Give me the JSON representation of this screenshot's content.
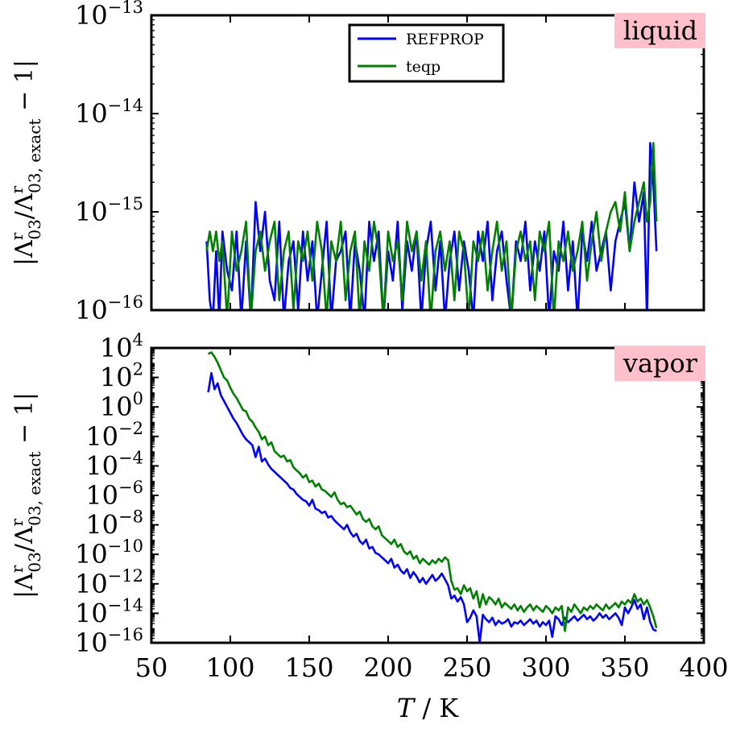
{
  "chart_data": [
    {
      "type": "line",
      "panel": "top",
      "annotation": "liquid",
      "annotation_bg": "#ffc0cb",
      "ylabel": "|Λ^r_03/Λ^r_03,exact − 1|",
      "ylabel_parts": {
        "open": "|Λ",
        "sup1": "r",
        "sub1": "03",
        "mid": "/Λ",
        "sup2": "r",
        "sub2": "03, exact",
        "close": " − 1|"
      },
      "yscale": "log",
      "ylim_exp": [
        -16,
        -13
      ],
      "yticks_exp": [
        -16,
        -15,
        -14,
        -13
      ],
      "yticks_base": "10",
      "yticks_sup": [
        "−16",
        "−15",
        "−14",
        "−13"
      ],
      "xlim": [
        50,
        400
      ],
      "legend": {
        "placement": "top-center",
        "entries": [
          "REFPROP",
          "teqp"
        ]
      },
      "series": [
        {
          "name": "REFPROP",
          "color": "#0000ff",
          "x": [
            85,
            87,
            89,
            91,
            93,
            95,
            98,
            101,
            104,
            107,
            110,
            113,
            116,
            119,
            122,
            125,
            128,
            131,
            134,
            137,
            140,
            143,
            146,
            149,
            152,
            155,
            158,
            161,
            164,
            167,
            170,
            173,
            176,
            179,
            182,
            185,
            188,
            191,
            194,
            197,
            200,
            203,
            206,
            209,
            212,
            215,
            218,
            221,
            224,
            227,
            230,
            233,
            236,
            239,
            242,
            245,
            248,
            251,
            254,
            257,
            260,
            263,
            266,
            269,
            272,
            275,
            278,
            281,
            284,
            287,
            290,
            293,
            296,
            299,
            302,
            305,
            308,
            311,
            314,
            317,
            320,
            323,
            326,
            329,
            332,
            335,
            338,
            341,
            344,
            347,
            350,
            353,
            356,
            359,
            362,
            364,
            366,
            368,
            370
          ],
          "y_exp": [
            -15.3,
            -15.9,
            -16.1,
            -15.4,
            -16.1,
            -15.2,
            -15.6,
            -15.8,
            -15.2,
            -16.1,
            -15.3,
            -16.1,
            -14.9,
            -15.4,
            -15.0,
            -15.7,
            -15.9,
            -15.1,
            -16.1,
            -15.5,
            -15.3,
            -16.0,
            -15.2,
            -15.7,
            -15.3,
            -16.1,
            -15.6,
            -15.1,
            -16.1,
            -15.5,
            -15.4,
            -15.2,
            -16.1,
            -15.3,
            -15.6,
            -16.1,
            -15.1,
            -15.5,
            -15.2,
            -16.1,
            -15.4,
            -15.7,
            -15.1,
            -16.0,
            -15.3,
            -15.6,
            -15.2,
            -16.1,
            -15.4,
            -15.1,
            -15.8,
            -15.3,
            -16.1,
            -15.5,
            -15.2,
            -15.8,
            -15.3,
            -15.6,
            -16.1,
            -15.2,
            -15.5,
            -15.1,
            -15.9,
            -15.4,
            -15.2,
            -15.7,
            -16.1,
            -15.3,
            -15.5,
            -15.1,
            -15.8,
            -15.3,
            -15.6,
            -15.2,
            -16.1,
            -15.4,
            -15.6,
            -15.1,
            -15.8,
            -15.3,
            -16.1,
            -15.2,
            -15.5,
            -15.1,
            -15.6,
            -15.4,
            -15.2,
            -15.8,
            -15.3,
            -15.1,
            -14.9,
            -15.4,
            -14.7,
            -15.1,
            -14.8,
            -16.1,
            -14.3,
            -14.7,
            -15.4
          ]
        },
        {
          "name": "teqp",
          "color": "#008000",
          "x": [
            85,
            87,
            89,
            91,
            93,
            95,
            98,
            101,
            104,
            107,
            110,
            113,
            116,
            119,
            122,
            125,
            128,
            131,
            134,
            137,
            140,
            143,
            146,
            149,
            152,
            155,
            158,
            161,
            164,
            167,
            170,
            173,
            176,
            179,
            182,
            185,
            188,
            191,
            194,
            197,
            200,
            203,
            206,
            209,
            212,
            215,
            218,
            221,
            224,
            227,
            230,
            233,
            236,
            239,
            242,
            245,
            248,
            251,
            254,
            257,
            260,
            263,
            266,
            269,
            272,
            275,
            278,
            281,
            284,
            287,
            290,
            293,
            296,
            299,
            302,
            305,
            308,
            311,
            314,
            317,
            320,
            323,
            326,
            329,
            332,
            335,
            338,
            341,
            344,
            347,
            350,
            353,
            356,
            359,
            362,
            364,
            366,
            368,
            370
          ],
          "y_exp": [
            -15.4,
            -15.2,
            -15.4,
            -15.2,
            -15.5,
            -15.3,
            -16.1,
            -15.2,
            -15.6,
            -15.4,
            -15.1,
            -16.1,
            -15.4,
            -15.2,
            -15.6,
            -15.3,
            -15.1,
            -15.9,
            -15.4,
            -15.2,
            -16.0,
            -15.3,
            -15.5,
            -15.2,
            -15.7,
            -15.1,
            -15.4,
            -16.1,
            -15.3,
            -15.5,
            -15.1,
            -15.9,
            -15.4,
            -15.2,
            -16.1,
            -15.3,
            -15.6,
            -15.1,
            -15.4,
            -16.1,
            -15.2,
            -15.5,
            -15.3,
            -15.9,
            -15.1,
            -15.4,
            -15.2,
            -15.7,
            -15.3,
            -16.1,
            -15.4,
            -15.2,
            -15.6,
            -15.3,
            -15.9,
            -15.2,
            -15.4,
            -16.1,
            -15.3,
            -15.5,
            -15.2,
            -15.8,
            -15.4,
            -15.1,
            -15.6,
            -15.3,
            -16.1,
            -15.4,
            -15.2,
            -15.5,
            -15.3,
            -15.9,
            -15.2,
            -15.4,
            -15.1,
            -16.1,
            -15.3,
            -15.5,
            -15.2,
            -15.6,
            -15.4,
            -15.1,
            -15.7,
            -15.3,
            -15.0,
            -15.5,
            -15.2,
            -15.0,
            -14.9,
            -15.2,
            -14.8,
            -15.4,
            -15.1,
            -14.9,
            -14.7,
            -15.1,
            -14.9,
            -14.3,
            -15.1
          ]
        }
      ]
    },
    {
      "type": "line",
      "panel": "bottom",
      "annotation": "vapor",
      "annotation_bg": "#ffc0cb",
      "ylabel": "|Λ^r_03/Λ^r_03,exact − 1|",
      "ylabel_parts": {
        "open": "|Λ",
        "sup1": "r",
        "sub1": "03",
        "mid": "/Λ",
        "sup2": "r",
        "sub2": "03, exact",
        "close": " − 1|"
      },
      "xlabel": "T / K",
      "xlabel_parts": {
        "var": "T",
        "unit": " / K"
      },
      "yscale": "log",
      "ylim_exp": [
        -16,
        4
      ],
      "yticks_exp": [
        -16,
        -14,
        -12,
        -10,
        -8,
        -6,
        -4,
        -2,
        0,
        2,
        4
      ],
      "yticks_base": "10",
      "yticks_sup": [
        "−16",
        "−14",
        "−12",
        "−10",
        "−8",
        "−6",
        "−4",
        "−2",
        "0",
        "2",
        "4"
      ],
      "xlim": [
        50,
        400
      ],
      "xticks": [
        "50",
        "100",
        "150",
        "200",
        "250",
        "300",
        "350",
        "400"
      ],
      "xtick_values": [
        50,
        100,
        150,
        200,
        250,
        300,
        350,
        400
      ],
      "series": [
        {
          "name": "REFPROP",
          "color": "#0000ff",
          "x": [
            86,
            88,
            90,
            92,
            94,
            96,
            98,
            100,
            102,
            104,
            106,
            108,
            110,
            112,
            114,
            116,
            118,
            120,
            122,
            124,
            126,
            128,
            130,
            132,
            134,
            136,
            138,
            140,
            142,
            144,
            146,
            148,
            150,
            152,
            154,
            156,
            158,
            160,
            162,
            164,
            166,
            168,
            170,
            172,
            174,
            176,
            178,
            180,
            182,
            184,
            186,
            188,
            190,
            192,
            194,
            196,
            198,
            200,
            202,
            204,
            206,
            208,
            210,
            212,
            214,
            216,
            218,
            220,
            222,
            224,
            226,
            228,
            230,
            232,
            234,
            236,
            238,
            240,
            242,
            244,
            246,
            248,
            250,
            252,
            254,
            256,
            258,
            260,
            262,
            264,
            266,
            268,
            270,
            272,
            274,
            276,
            278,
            280,
            282,
            284,
            286,
            288,
            290,
            292,
            294,
            296,
            298,
            300,
            302,
            304,
            306,
            308,
            310,
            312,
            314,
            316,
            318,
            320,
            322,
            324,
            326,
            328,
            330,
            332,
            334,
            336,
            338,
            340,
            342,
            344,
            346,
            348,
            350,
            352,
            354,
            356,
            358,
            360,
            362,
            364,
            366,
            368,
            370
          ],
          "y_exp": [
            1.0,
            2.3,
            1.2,
            1.6,
            0.8,
            0.4,
            0.0,
            -0.4,
            -0.8,
            -1.1,
            -1.5,
            -1.9,
            -2.2,
            -2.4,
            -2.6,
            -3.4,
            -2.7,
            -3.7,
            -3.5,
            -3.9,
            -4.2,
            -4.4,
            -4.6,
            -4.8,
            -5.0,
            -5.2,
            -5.5,
            -5.6,
            -5.9,
            -6.1,
            -6.3,
            -6.4,
            -6.7,
            -6.3,
            -6.9,
            -7.0,
            -7.2,
            -7.1,
            -7.5,
            -7.4,
            -7.7,
            -7.9,
            -8.1,
            -8.3,
            -8.0,
            -8.5,
            -8.8,
            -8.6,
            -9.1,
            -9.3,
            -9.0,
            -9.6,
            -9.5,
            -9.9,
            -10.0,
            -10.2,
            -10.4,
            -10.6,
            -10.3,
            -10.9,
            -10.7,
            -11.1,
            -11.3,
            -11.0,
            -11.6,
            -11.2,
            -11.5,
            -11.9,
            -11.6,
            -12.0,
            -11.7,
            -11.4,
            -11.8,
            -11.6,
            -11.3,
            -11.7,
            -12.1,
            -13.0,
            -12.8,
            -13.2,
            -12.9,
            -13.4,
            -14.6,
            -14.3,
            -13.8,
            -14.2,
            -16.0,
            -14.1,
            -14.4,
            -14.6,
            -14.3,
            -14.8,
            -14.5,
            -14.7,
            -14.6,
            -14.4,
            -14.9,
            -14.6,
            -14.7,
            -14.5,
            -14.8,
            -14.6,
            -14.4,
            -14.7,
            -14.5,
            -14.9,
            -14.6,
            -14.8,
            -14.5,
            -15.6,
            -14.2,
            -14.4,
            -14.8,
            -14.3,
            -14.6,
            -14.4,
            -14.2,
            -14.5,
            -14.3,
            -14.1,
            -14.4,
            -14.2,
            -14.5,
            -14.3,
            -14.0,
            -14.3,
            -14.1,
            -14.4,
            -14.2,
            -14.0,
            -14.3,
            -14.8,
            -13.6,
            -14.0,
            -13.6,
            -13.1,
            -13.7,
            -13.4,
            -14.4,
            -13.6,
            -14.6,
            -15.1,
            -15.2
          ]
        },
        {
          "name": "teqp",
          "color": "#008000",
          "x": [
            86,
            88,
            90,
            92,
            94,
            96,
            98,
            100,
            102,
            104,
            106,
            108,
            110,
            112,
            114,
            116,
            118,
            120,
            122,
            124,
            126,
            128,
            130,
            132,
            134,
            136,
            138,
            140,
            142,
            144,
            146,
            148,
            150,
            152,
            154,
            156,
            158,
            160,
            162,
            164,
            166,
            168,
            170,
            172,
            174,
            176,
            178,
            180,
            182,
            184,
            186,
            188,
            190,
            192,
            194,
            196,
            198,
            200,
            202,
            204,
            206,
            208,
            210,
            212,
            214,
            216,
            218,
            220,
            222,
            224,
            226,
            228,
            230,
            232,
            234,
            236,
            238,
            240,
            242,
            244,
            246,
            248,
            250,
            252,
            254,
            256,
            258,
            260,
            262,
            264,
            266,
            268,
            270,
            272,
            274,
            276,
            278,
            280,
            282,
            284,
            286,
            288,
            290,
            292,
            294,
            296,
            298,
            300,
            302,
            304,
            306,
            308,
            310,
            312,
            314,
            316,
            318,
            320,
            322,
            324,
            326,
            328,
            330,
            332,
            334,
            336,
            338,
            340,
            342,
            344,
            346,
            348,
            350,
            352,
            354,
            356,
            358,
            360,
            362,
            364,
            366,
            368,
            370
          ],
          "y_exp": [
            3.6,
            3.7,
            3.4,
            3.0,
            2.5,
            2.0,
            1.8,
            1.3,
            0.9,
            0.6,
            0.2,
            -0.2,
            -0.3,
            -0.8,
            -1.0,
            -1.4,
            -1.7,
            -2.2,
            -2.0,
            -2.6,
            -2.4,
            -3.0,
            -3.2,
            -3.4,
            -3.3,
            -3.7,
            -3.6,
            -4.1,
            -4.3,
            -4.5,
            -4.8,
            -4.6,
            -5.1,
            -5.0,
            -5.4,
            -5.2,
            -5.6,
            -5.7,
            -5.9,
            -6.1,
            -5.8,
            -6.3,
            -6.6,
            -6.5,
            -6.8,
            -6.7,
            -7.0,
            -7.3,
            -7.1,
            -7.6,
            -7.8,
            -7.6,
            -8.1,
            -8.3,
            -8.1,
            -8.7,
            -8.9,
            -9.1,
            -9.3,
            -9.0,
            -9.5,
            -9.3,
            -9.8,
            -10.0,
            -9.8,
            -10.3,
            -10.1,
            -10.6,
            -10.3,
            -10.5,
            -10.7,
            -10.4,
            -10.6,
            -10.3,
            -10.5,
            -10.2,
            -10.4,
            -11.8,
            -12.4,
            -12.3,
            -12.7,
            -12.1,
            -12.5,
            -12.3,
            -13.0,
            -12.5,
            -13.6,
            -12.7,
            -13.4,
            -12.9,
            -13.1,
            -13.4,
            -13.0,
            -13.6,
            -13.3,
            -13.5,
            -13.7,
            -13.4,
            -13.8,
            -13.5,
            -13.9,
            -13.6,
            -13.4,
            -13.8,
            -13.5,
            -13.7,
            -13.9,
            -13.5,
            -13.7,
            -14.0,
            -13.6,
            -13.8,
            -13.5,
            -15.2,
            -13.6,
            -13.9,
            -13.4,
            -13.7,
            -14.0,
            -13.6,
            -13.8,
            -13.5,
            -13.7,
            -13.4,
            -13.6,
            -13.8,
            -13.4,
            -13.7,
            -13.5,
            -13.3,
            -13.6,
            -13.2,
            -13.4,
            -13.1,
            -13.3,
            -12.7,
            -13.2,
            -13.0,
            -13.4,
            -13.1,
            -13.6,
            -14.2,
            -15.0
          ]
        }
      ]
    }
  ]
}
